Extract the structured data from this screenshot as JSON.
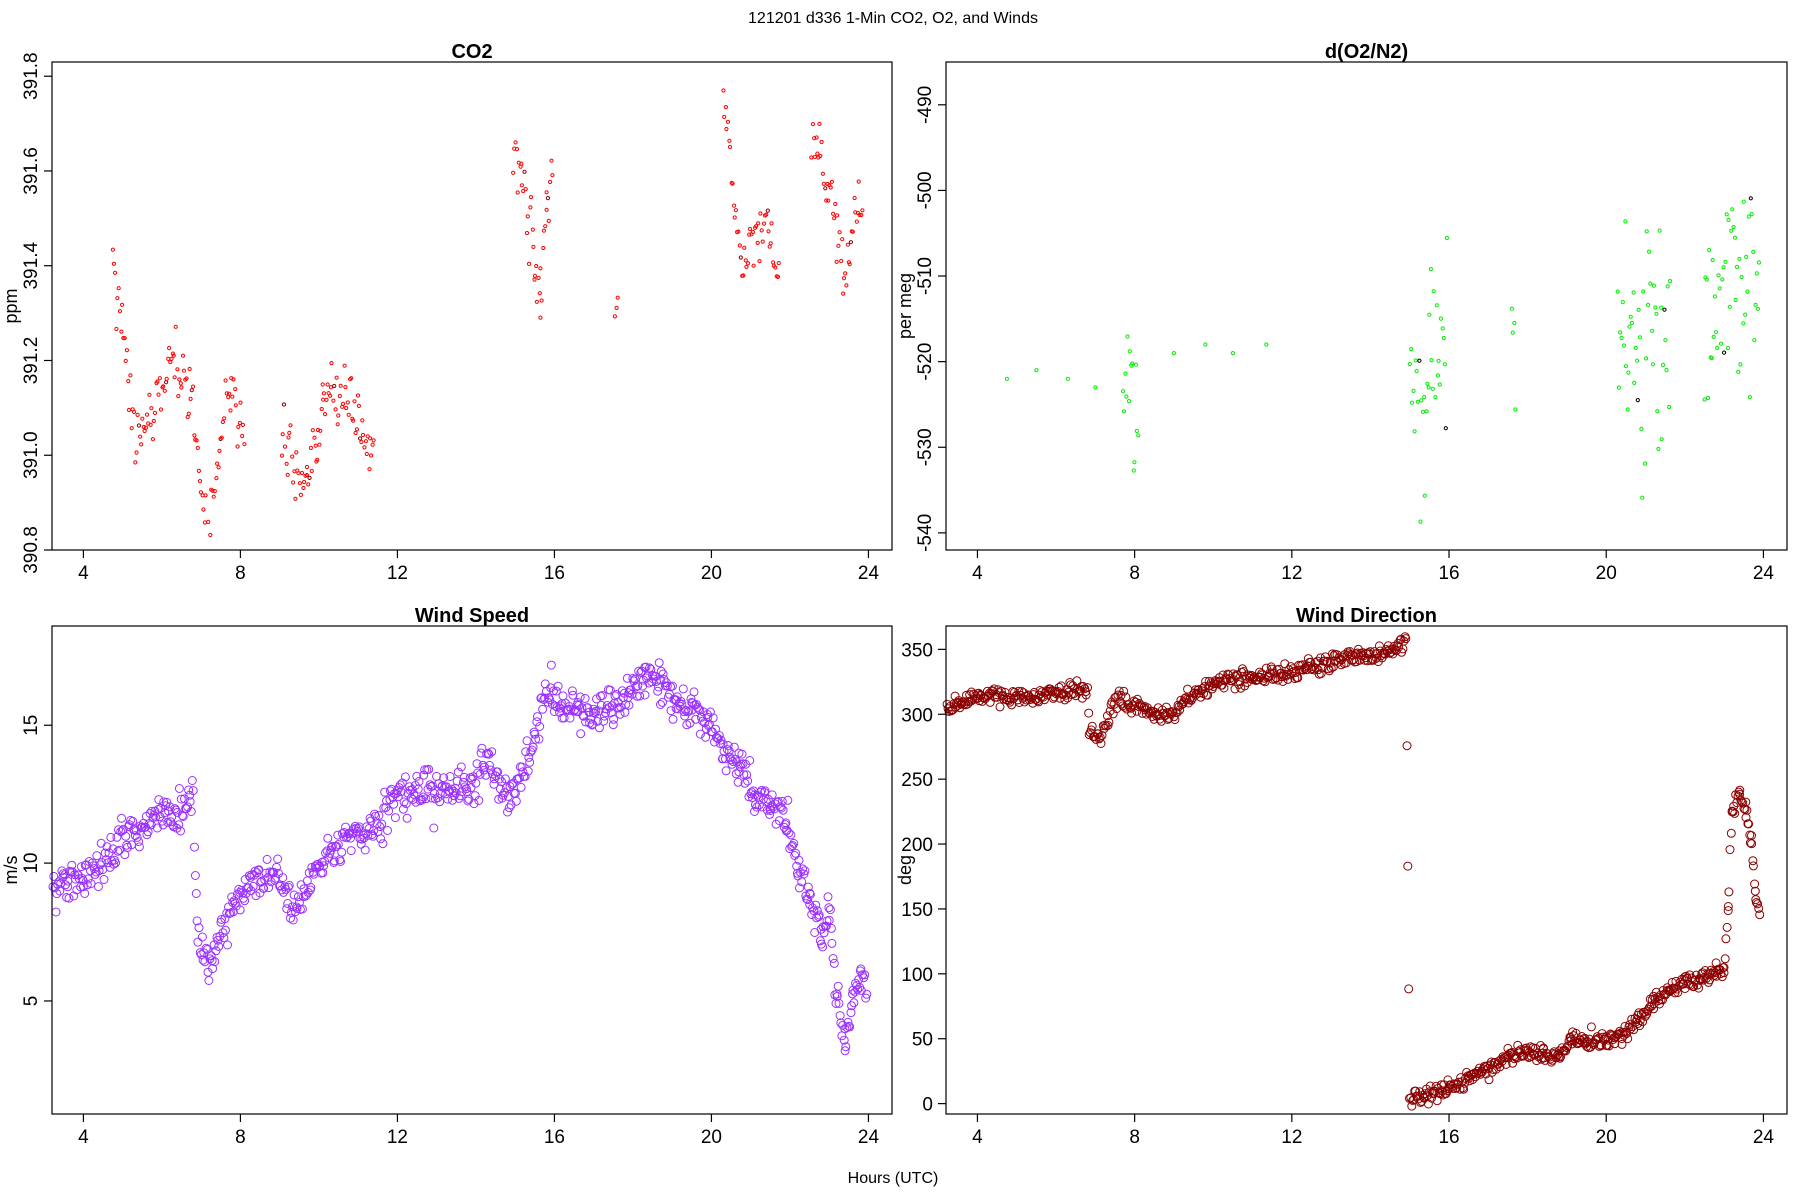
{
  "figure": {
    "supertitle": "121201   d336   1-Min CO2, O2, and Winds",
    "xlabel": "Hours (UTC)"
  },
  "chart_data": [
    {
      "type": "scatter",
      "title": "CO2",
      "xlabel": "",
      "ylabel": "ppm",
      "xlim": [
        3.2,
        24.6
      ],
      "ylim": [
        390.8,
        391.83
      ],
      "xticks": [
        4,
        8,
        12,
        16,
        20,
        24
      ],
      "yticks": [
        390.8,
        391.0,
        391.2,
        391.4,
        391.6,
        391.8
      ],
      "ytick_labels": [
        "390.8",
        "391.0",
        "391.2",
        "391.4",
        "391.6",
        "391.8"
      ],
      "y_tick_rotated": true,
      "color": "#ff0000",
      "secondary_color": "#8b0000",
      "marker_radius": 1.6,
      "grid": false,
      "legend": "none",
      "trace": [
        [
          4.75,
          391.4
        ],
        [
          4.9,
          391.33
        ],
        [
          5.05,
          391.24
        ],
        [
          5.2,
          391.12
        ],
        [
          5.35,
          391.07
        ],
        [
          5.5,
          391.04
        ],
        [
          5.65,
          391.05
        ],
        [
          5.8,
          391.07
        ],
        [
          5.95,
          391.12
        ],
        [
          6.1,
          391.18
        ],
        [
          6.3,
          391.21
        ],
        [
          6.5,
          391.17
        ],
        [
          6.7,
          391.14
        ],
        [
          6.85,
          391.05
        ],
        [
          7.0,
          390.93
        ],
        [
          7.2,
          390.87
        ],
        [
          7.35,
          390.94
        ],
        [
          7.5,
          391.03
        ],
        [
          7.65,
          391.11
        ],
        [
          7.8,
          391.14
        ],
        [
          7.95,
          391.08
        ],
        [
          8.1,
          391.02
        ],
        [
          9.05,
          391.04
        ],
        [
          9.25,
          391.0
        ],
        [
          9.45,
          390.96
        ],
        [
          9.7,
          390.97
        ],
        [
          9.95,
          391.0
        ],
        [
          10.1,
          391.1
        ],
        [
          10.3,
          391.15
        ],
        [
          10.5,
          391.11
        ],
        [
          10.7,
          391.13
        ],
        [
          10.9,
          391.1
        ],
        [
          11.1,
          391.05
        ],
        [
          11.3,
          391.0
        ],
        [
          11.4,
          391.02
        ],
        [
          14.95,
          391.64
        ],
        [
          15.15,
          391.58
        ],
        [
          15.35,
          391.5
        ],
        [
          15.5,
          391.4
        ],
        [
          15.65,
          391.32
        ],
        [
          15.8,
          391.5
        ],
        [
          15.95,
          391.6
        ],
        [
          17.55,
          391.31
        ],
        [
          17.62,
          391.3
        ],
        [
          20.3,
          391.78
        ],
        [
          20.45,
          391.63
        ],
        [
          20.6,
          391.5
        ],
        [
          20.75,
          391.4
        ],
        [
          20.9,
          391.4
        ],
        [
          21.05,
          391.46
        ],
        [
          21.25,
          391.48
        ],
        [
          21.45,
          391.5
        ],
        [
          21.6,
          391.42
        ],
        [
          21.75,
          391.38
        ],
        [
          22.55,
          391.64
        ],
        [
          22.75,
          391.66
        ],
        [
          22.95,
          391.58
        ],
        [
          23.15,
          391.46
        ],
        [
          23.35,
          391.38
        ],
        [
          23.55,
          391.45
        ],
        [
          23.75,
          391.51
        ],
        [
          23.85,
          391.52
        ]
      ],
      "jitter": 0.035,
      "step": 0.03
    },
    {
      "type": "scatter",
      "title": "d(O2/N2)",
      "xlabel": "",
      "ylabel": "per meg",
      "xlim": [
        3.2,
        24.6
      ],
      "ylim": [
        -542,
        -485
      ],
      "xticks": [
        4,
        8,
        12,
        16,
        20,
        24
      ],
      "yticks": [
        -540,
        -530,
        -520,
        -510,
        -500,
        -490
      ],
      "ytick_labels": [
        "-540",
        "-530",
        "-520",
        "-510",
        "-500",
        "-490"
      ],
      "y_tick_rotated": true,
      "color": "#00ee00",
      "secondary_color": "#000000",
      "marker_radius": 1.6,
      "grid": false,
      "legend": "none",
      "trace": [
        [
          4.75,
          -522
        ],
        [
          5.5,
          -521
        ],
        [
          6.3,
          -522
        ],
        [
          7.0,
          -523
        ],
        [
          7.7,
          -523
        ],
        [
          8.1,
          -522
        ],
        [
          9.0,
          -519
        ],
        [
          9.8,
          -518
        ],
        [
          10.5,
          -519
        ],
        [
          11.35,
          -518
        ],
        [
          15.0,
          -524
        ],
        [
          15.5,
          -522
        ],
        [
          15.95,
          -518
        ],
        [
          17.6,
          -523
        ],
        [
          17.7,
          -523
        ],
        [
          20.3,
          -519
        ],
        [
          20.8,
          -519
        ],
        [
          21.3,
          -518
        ],
        [
          21.65,
          -518
        ],
        [
          22.5,
          -515
        ],
        [
          23.0,
          -513
        ],
        [
          23.5,
          -511
        ],
        [
          23.9,
          -512
        ]
      ],
      "jitter": 5.5,
      "step": 0.03
    },
    {
      "type": "scatter",
      "title": "Wind Speed",
      "xlabel": "",
      "ylabel": "m/s",
      "xlim": [
        3.2,
        24.6
      ],
      "ylim": [
        0.9,
        18.6
      ],
      "xticks": [
        4,
        8,
        12,
        16,
        20,
        24
      ],
      "yticks": [
        5,
        10,
        15
      ],
      "ytick_labels": [
        "5",
        "10",
        "15"
      ],
      "y_tick_rotated": true,
      "color": "#9b30ff",
      "secondary_color": "#9b30ff",
      "marker_radius": 4,
      "grid": false,
      "legend": "none",
      "trace": [
        [
          3.2,
          9.2
        ],
        [
          3.6,
          9.3
        ],
        [
          4.0,
          9.6
        ],
        [
          4.5,
          9.8
        ],
        [
          5.0,
          11.0
        ],
        [
          5.5,
          11.2
        ],
        [
          6.0,
          11.8
        ],
        [
          6.5,
          12.0
        ],
        [
          6.8,
          12.3
        ],
        [
          6.9,
          7.5
        ],
        [
          7.2,
          6.0
        ],
        [
          7.4,
          7.2
        ],
        [
          7.8,
          8.5
        ],
        [
          8.2,
          9.3
        ],
        [
          8.7,
          9.6
        ],
        [
          9.0,
          9.5
        ],
        [
          9.3,
          8.3
        ],
        [
          9.6,
          8.8
        ],
        [
          10.0,
          9.8
        ],
        [
          10.5,
          10.5
        ],
        [
          11.0,
          11.2
        ],
        [
          11.5,
          11.6
        ],
        [
          12.0,
          12.3
        ],
        [
          12.5,
          12.6
        ],
        [
          13.0,
          12.8
        ],
        [
          13.5,
          12.7
        ],
        [
          14.0,
          12.9
        ],
        [
          14.3,
          13.8
        ],
        [
          14.6,
          12.8
        ],
        [
          14.9,
          12.4
        ],
        [
          15.2,
          13.5
        ],
        [
          15.5,
          14.5
        ],
        [
          15.8,
          16.3
        ],
        [
          16.2,
          15.8
        ],
        [
          16.6,
          15.5
        ],
        [
          17.0,
          15.4
        ],
        [
          17.5,
          15.7
        ],
        [
          17.9,
          16.0
        ],
        [
          18.3,
          16.8
        ],
        [
          18.7,
          16.5
        ],
        [
          19.1,
          15.8
        ],
        [
          19.5,
          15.6
        ],
        [
          19.9,
          15.3
        ],
        [
          20.3,
          14.2
        ],
        [
          20.7,
          13.6
        ],
        [
          21.1,
          12.5
        ],
        [
          21.5,
          12.3
        ],
        [
          21.9,
          11.5
        ],
        [
          22.2,
          9.8
        ],
        [
          22.5,
          8.8
        ],
        [
          22.8,
          7.3
        ],
        [
          23.0,
          8.5
        ],
        [
          23.2,
          5.2
        ],
        [
          23.4,
          3.5
        ],
        [
          23.6,
          5.0
        ],
        [
          23.8,
          6.0
        ],
        [
          23.95,
          5.5
        ]
      ],
      "jitter": 0.35,
      "step": 0.025
    },
    {
      "type": "scatter",
      "title": "Wind Direction",
      "xlabel": "",
      "ylabel": "deg",
      "xlim": [
        3.2,
        24.6
      ],
      "ylim": [
        -8,
        368
      ],
      "xticks": [
        4,
        8,
        12,
        16,
        20,
        24
      ],
      "yticks": [
        0,
        50,
        100,
        150,
        200,
        250,
        300,
        350
      ],
      "ytick_labels": [
        "0",
        "50",
        "100",
        "150",
        "200",
        "250",
        "300",
        "350"
      ],
      "y_tick_rotated": false,
      "color": "#8b0000",
      "secondary_color": "#8b0000",
      "marker_radius": 4,
      "grid": false,
      "legend": "none",
      "trace": [
        [
          3.2,
          301
        ],
        [
          3.5,
          309
        ],
        [
          4.0,
          313
        ],
        [
          4.5,
          316
        ],
        [
          5.0,
          313
        ],
        [
          5.5,
          314
        ],
        [
          6.0,
          316
        ],
        [
          6.5,
          319
        ],
        [
          6.8,
          318
        ],
        [
          6.85,
          290
        ],
        [
          7.1,
          280
        ],
        [
          7.3,
          295
        ],
        [
          7.6,
          314
        ],
        [
          8.0,
          306
        ],
        [
          8.5,
          300
        ],
        [
          9.0,
          300
        ],
        [
          9.3,
          310
        ],
        [
          9.7,
          318
        ],
        [
          10.0,
          324
        ],
        [
          10.5,
          327
        ],
        [
          11.0,
          327
        ],
        [
          11.5,
          330
        ],
        [
          12.0,
          333
        ],
        [
          12.5,
          337
        ],
        [
          13.0,
          340
        ],
        [
          13.5,
          342
        ],
        [
          14.0,
          345
        ],
        [
          14.5,
          348
        ],
        [
          14.9,
          356
        ],
        [
          15.0,
          2
        ],
        [
          15.5,
          8
        ],
        [
          16.0,
          11
        ],
        [
          16.5,
          20
        ],
        [
          17.0,
          28
        ],
        [
          17.5,
          36
        ],
        [
          18.0,
          40
        ],
        [
          18.4,
          38
        ],
        [
          18.8,
          36
        ],
        [
          19.1,
          48
        ],
        [
          19.5,
          50
        ],
        [
          20.0,
          48
        ],
        [
          20.4,
          53
        ],
        [
          20.8,
          64
        ],
        [
          21.2,
          78
        ],
        [
          21.6,
          86
        ],
        [
          22.0,
          95
        ],
        [
          22.4,
          97
        ],
        [
          22.8,
          102
        ],
        [
          23.0,
          104
        ],
        [
          23.1,
          150
        ],
        [
          23.2,
          225
        ],
        [
          23.4,
          240
        ],
        [
          23.55,
          225
        ],
        [
          23.7,
          200
        ],
        [
          23.8,
          160
        ],
        [
          23.9,
          145
        ]
      ],
      "jitter": 3.2,
      "step": 0.025
    }
  ]
}
